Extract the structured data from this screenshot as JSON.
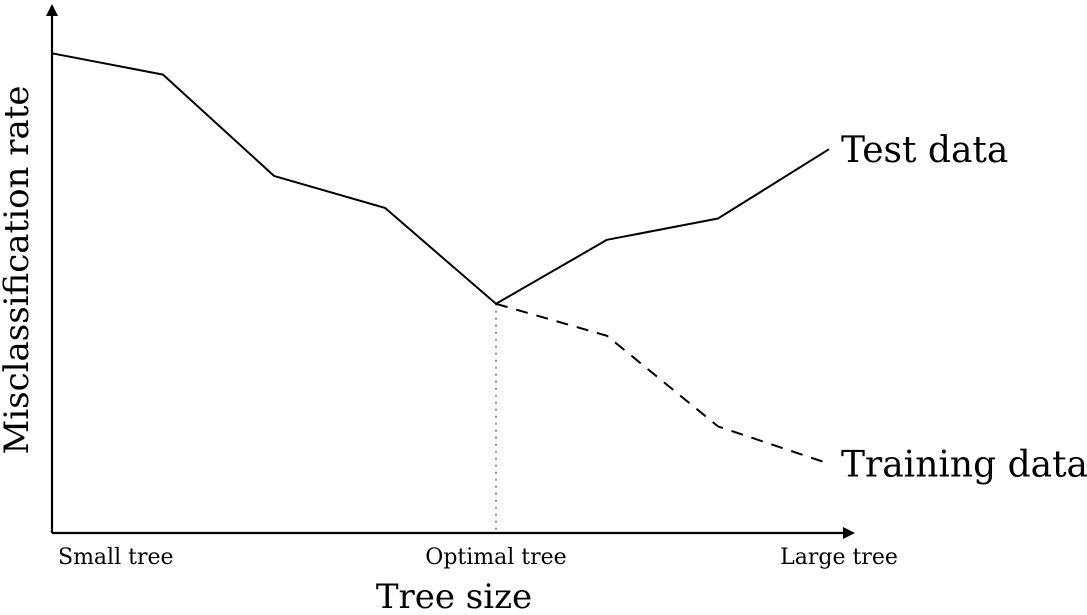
{
  "chart_data": {
    "type": "line",
    "xlabel": "Tree size",
    "ylabel": "Misclassification rate",
    "x_ticks": [
      {
        "x": 0,
        "label": "Small tree"
      },
      {
        "x": 4,
        "label": "Optimal tree"
      },
      {
        "x": 7,
        "label": "Large tree"
      }
    ],
    "xlim": [
      0,
      7.2
    ],
    "ylim": [
      0,
      1
    ],
    "grid": false,
    "optimal_x": 4,
    "series": [
      {
        "name": "Test data",
        "style": "solid",
        "x": [
          0,
          1,
          2,
          3,
          4,
          5,
          6,
          7
        ],
        "y": [
          0.9,
          0.86,
          0.67,
          0.61,
          0.43,
          0.55,
          0.59,
          0.72
        ]
      },
      {
        "name": "Training data",
        "style": "dashed",
        "x": [
          4,
          5,
          6,
          7
        ],
        "y": [
          0.43,
          0.37,
          0.2,
          0.13
        ]
      }
    ]
  }
}
